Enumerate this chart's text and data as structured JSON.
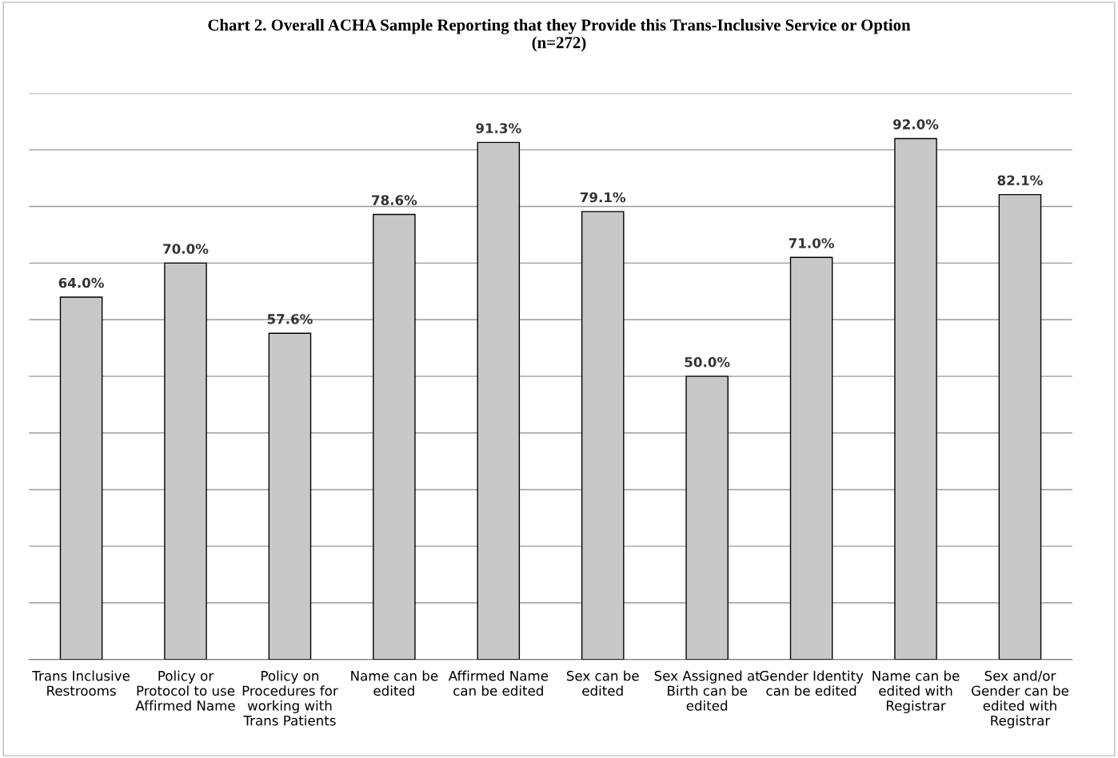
{
  "chart_data": {
    "type": "bar",
    "title": "Chart 2. Overall ACHA Sample Reporting that they Provide this Trans-Inclusive Service or Option\n(n=272)",
    "categories": [
      "Trans Inclusive Restrooms",
      "Policy or Protocol to use Affirmed Name",
      "Policy on Procedures for working with Trans Patients",
      "Name can be edited",
      "Affirmed Name can be edited",
      "Sex can be edited",
      "Sex Assigned at Birth can be edited",
      "Gender Identity can be edited",
      "Name can be edited with Registrar",
      "Sex and/or Gender can be edited with Registrar"
    ],
    "values": [
      64.0,
      70.0,
      57.6,
      78.6,
      91.3,
      79.1,
      50.0,
      71.0,
      92.0,
      82.1
    ],
    "value_labels": [
      "64.0%",
      "70.0%",
      "57.6%",
      "78.6%",
      "91.3%",
      "79.1%",
      "50.0%",
      "71.0%",
      "92.0%",
      "82.1%"
    ],
    "color": "#c8c8c8",
    "ylim": [
      0,
      100
    ],
    "yticks": [
      {
        "value": 0,
        "label": null
      },
      {
        "value": 10,
        "label": null
      },
      {
        "value": 20,
        "label": null
      },
      {
        "value": 30,
        "label": null
      },
      {
        "value": 40,
        "label": null
      },
      {
        "value": 50,
        "label": null
      },
      {
        "value": 60,
        "label": null
      },
      {
        "value": 70,
        "label": null
      },
      {
        "value": 80,
        "label": null
      },
      {
        "value": 90,
        "label": null
      },
      {
        "value": 100,
        "label": null
      }
    ],
    "grid": "y",
    "tick_labels": "x"
  }
}
